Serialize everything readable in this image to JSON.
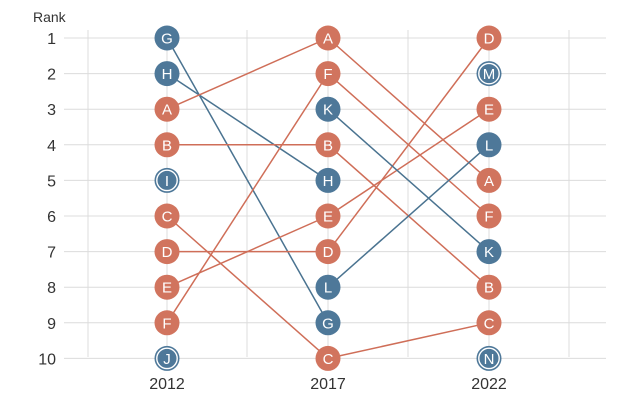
{
  "chart_data": {
    "type": "bump",
    "ylabel": "Rank",
    "x": [
      "2012",
      "2017",
      "2022"
    ],
    "y_ticks": [
      1,
      2,
      3,
      4,
      5,
      6,
      7,
      8,
      9,
      10
    ],
    "ylim": [
      1,
      10
    ],
    "y_inverted": true,
    "grid": true,
    "colors": {
      "red": "#d1745e",
      "blue": "#4e7899",
      "line_red": "#cf6e58",
      "line_blue": "#4a7390"
    },
    "series": [
      {
        "name": "G",
        "color": "blue",
        "ranks": [
          1,
          9,
          null
        ]
      },
      {
        "name": "H",
        "color": "blue",
        "ranks": [
          2,
          5,
          null
        ]
      },
      {
        "name": "A",
        "color": "red",
        "ranks": [
          3,
          1,
          5
        ]
      },
      {
        "name": "B",
        "color": "red",
        "ranks": [
          4,
          4,
          8
        ]
      },
      {
        "name": "I",
        "color": "blue",
        "ranks": [
          5,
          null,
          null
        ]
      },
      {
        "name": "C",
        "color": "red",
        "ranks": [
          6,
          10,
          9
        ]
      },
      {
        "name": "D",
        "color": "red",
        "ranks": [
          7,
          7,
          1
        ]
      },
      {
        "name": "E",
        "color": "red",
        "ranks": [
          8,
          6,
          3
        ]
      },
      {
        "name": "F",
        "color": "red",
        "ranks": [
          9,
          2,
          6
        ]
      },
      {
        "name": "J",
        "color": "blue",
        "ranks": [
          10,
          null,
          null
        ]
      },
      {
        "name": "K",
        "color": "blue",
        "ranks": [
          null,
          3,
          7
        ]
      },
      {
        "name": "L",
        "color": "blue",
        "ranks": [
          null,
          8,
          4
        ]
      },
      {
        "name": "M",
        "color": "blue",
        "ranks": [
          null,
          null,
          2
        ]
      },
      {
        "name": "N",
        "color": "blue",
        "ranks": [
          null,
          null,
          10
        ]
      }
    ]
  }
}
